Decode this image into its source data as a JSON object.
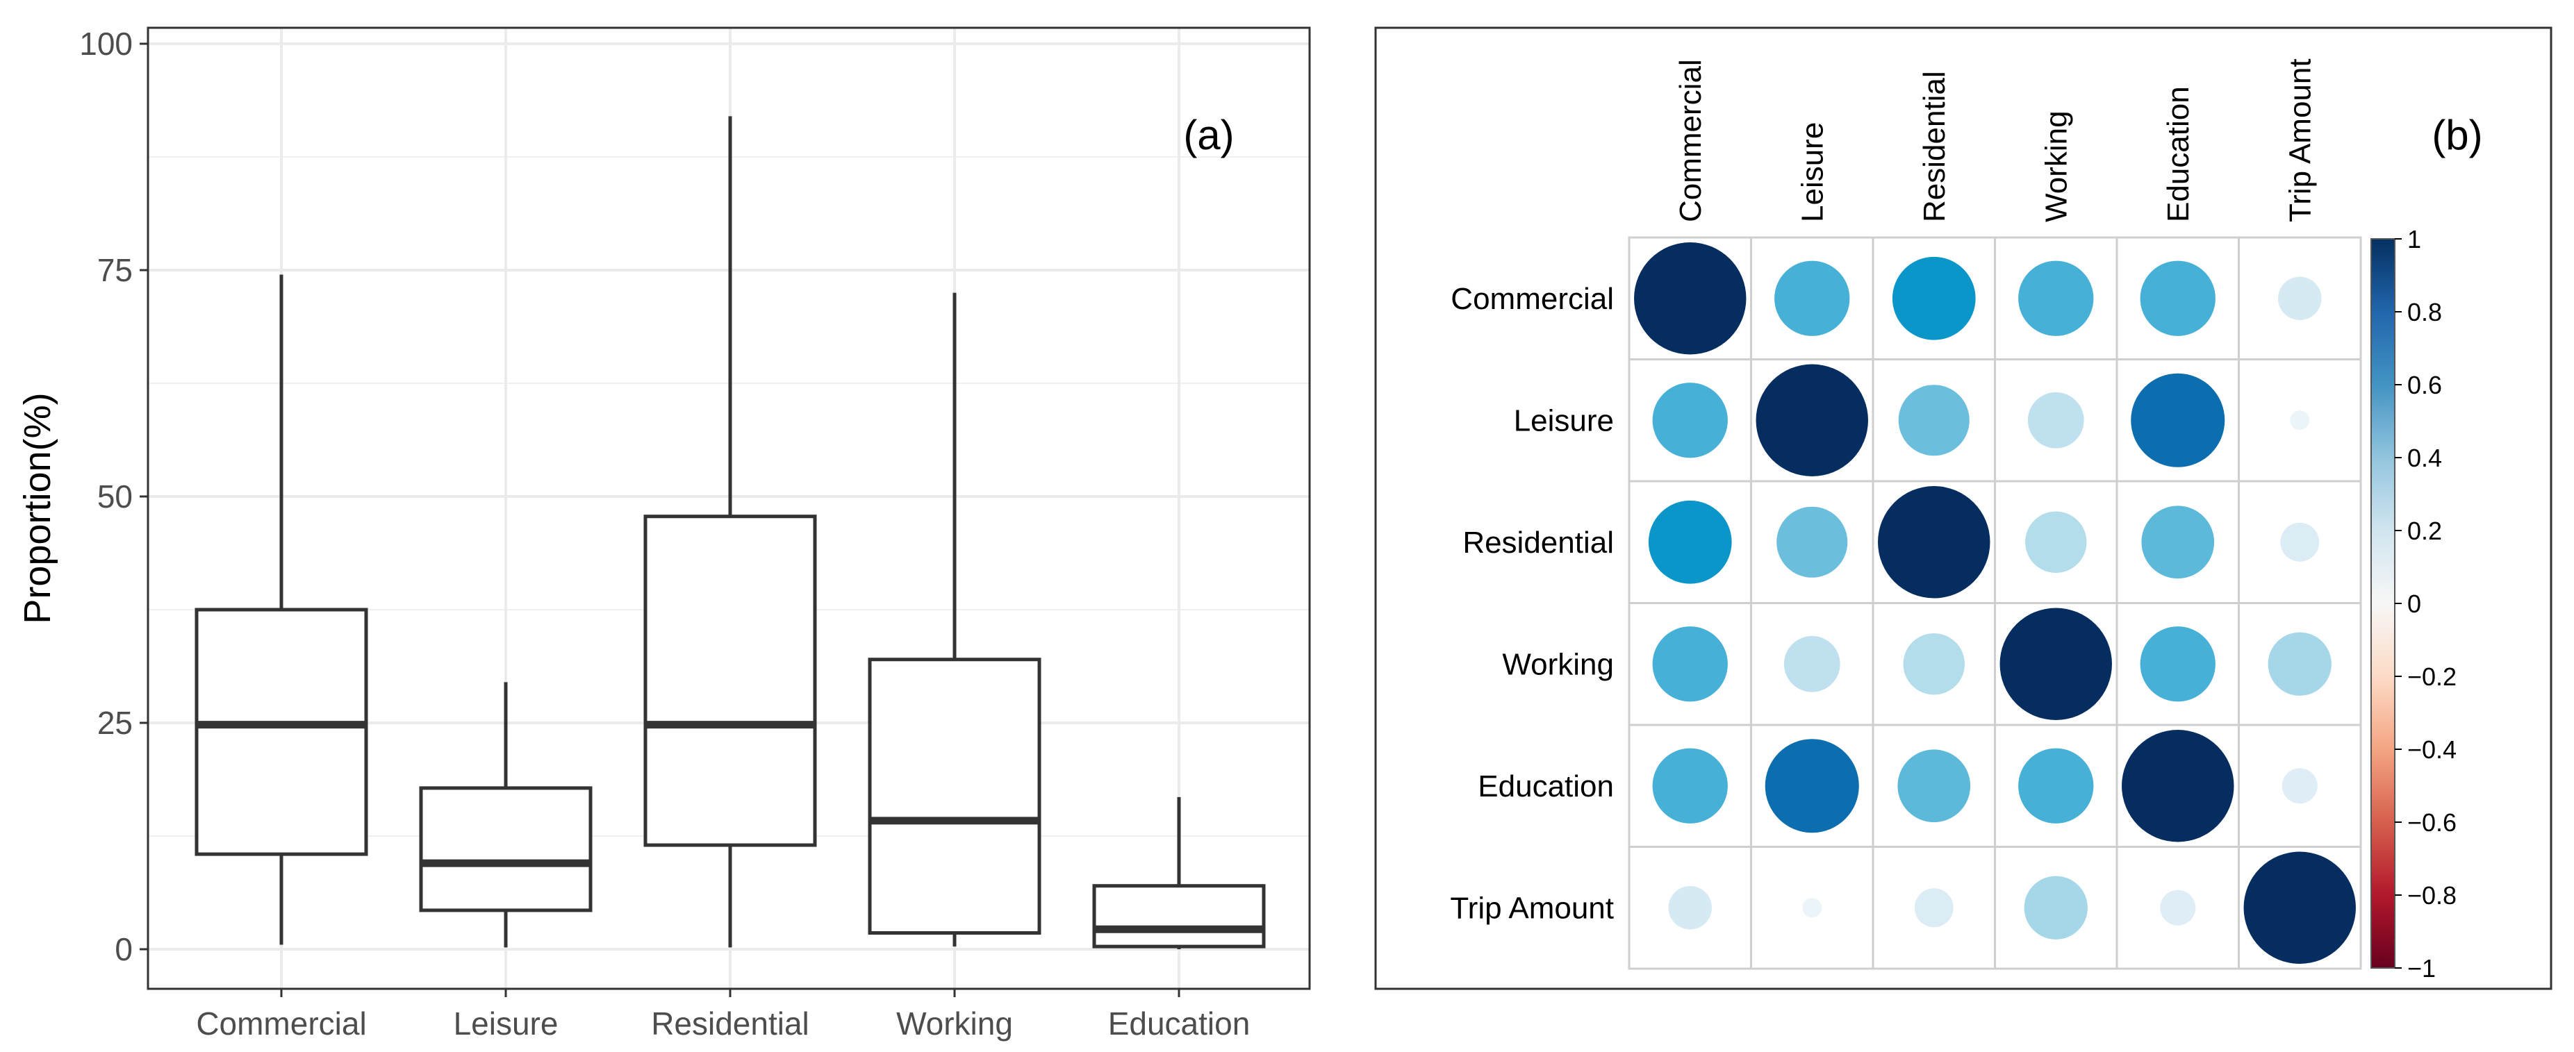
{
  "chart_data": [
    {
      "type": "box",
      "panel_label": "(a)",
      "ylabel": "Proportion(%)",
      "xlabel": "",
      "ylim": [
        0,
        100
      ],
      "yticks": [
        "0",
        "25",
        "50",
        "75",
        "100"
      ],
      "grid": true,
      "categories": [
        "Commercial",
        "Leisure",
        "Residential",
        "Working",
        "Education"
      ],
      "boxes": [
        {
          "min": 0.5,
          "q1": 10.5,
          "median": 24.8,
          "q3": 37.5,
          "max": 74.5
        },
        {
          "min": 0.2,
          "q1": 4.3,
          "median": 9.5,
          "q3": 17.8,
          "max": 29.5
        },
        {
          "min": 0.2,
          "q1": 11.5,
          "median": 24.8,
          "q3": 47.8,
          "max": 92.0
        },
        {
          "min": 0.3,
          "q1": 1.8,
          "median": 14.2,
          "q3": 32.0,
          "max": 72.5
        },
        {
          "min": 0.0,
          "q1": 0.3,
          "median": 2.2,
          "q3": 7.0,
          "max": 16.8
        }
      ]
    },
    {
      "type": "heatmap",
      "panel_label": "(b)",
      "labels": [
        "Commercial",
        "Leisure",
        "Residential",
        "Working",
        "Education",
        "Trip Amount"
      ],
      "matrix": [
        [
          1.0,
          0.45,
          0.55,
          0.45,
          0.45,
          0.15
        ],
        [
          0.45,
          1.0,
          0.4,
          0.25,
          0.7,
          0.03
        ],
        [
          0.55,
          0.4,
          1.0,
          0.3,
          0.42,
          0.12
        ],
        [
          0.45,
          0.25,
          0.3,
          1.0,
          0.45,
          0.32
        ],
        [
          0.45,
          0.7,
          0.42,
          0.45,
          1.0,
          0.1
        ],
        [
          0.15,
          0.03,
          0.12,
          0.32,
          0.1,
          1.0
        ]
      ],
      "colorbar": {
        "range": [
          -1,
          1
        ],
        "ticks": [
          "1",
          "0.8",
          "0.6",
          "0.4",
          "0.2",
          "0",
          "−0.2",
          "−0.4",
          "−0.6",
          "−0.8",
          "−1"
        ]
      }
    }
  ]
}
